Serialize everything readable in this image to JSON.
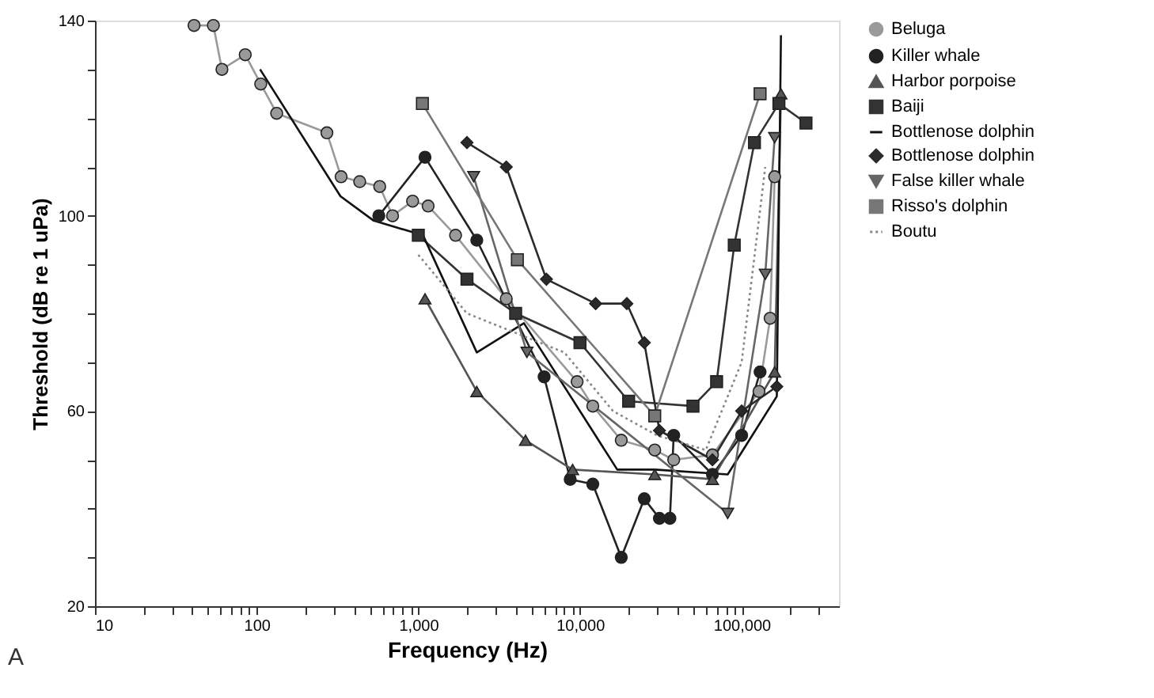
{
  "chart_data": {
    "type": "line",
    "xlabel": "Frequency (Hz)",
    "ylabel": "Threshold (dB re 1 uPa)",
    "annotations": [
      "A"
    ],
    "log": "x",
    "grid": false,
    "legend": "top right",
    "xlim": [
      10,
      400000
    ],
    "ylim": [
      20,
      140
    ],
    "xticks": [
      {
        "value": 10,
        "label": "10"
      },
      {
        "value": 20,
        "label": null
      },
      {
        "value": 30,
        "label": null
      },
      {
        "value": 40,
        "label": null
      },
      {
        "value": 50,
        "label": null
      },
      {
        "value": 60,
        "label": null
      },
      {
        "value": 70,
        "label": null
      },
      {
        "value": 80,
        "label": null
      },
      {
        "value": 90,
        "label": null
      },
      {
        "value": 100,
        "label": "100"
      },
      {
        "value": 200,
        "label": null
      },
      {
        "value": 300,
        "label": null
      },
      {
        "value": 400,
        "label": null
      },
      {
        "value": 500,
        "label": null
      },
      {
        "value": 600,
        "label": null
      },
      {
        "value": 700,
        "label": null
      },
      {
        "value": 800,
        "label": null
      },
      {
        "value": 900,
        "label": null
      },
      {
        "value": 1000,
        "label": "1,000"
      },
      {
        "value": 2000,
        "label": null
      },
      {
        "value": 3000,
        "label": null
      },
      {
        "value": 4000,
        "label": null
      },
      {
        "value": 5000,
        "label": null
      },
      {
        "value": 6000,
        "label": null
      },
      {
        "value": 7000,
        "label": null
      },
      {
        "value": 8000,
        "label": null
      },
      {
        "value": 9000,
        "label": null
      },
      {
        "value": 10000,
        "label": "10,000"
      },
      {
        "value": 20000,
        "label": null
      },
      {
        "value": 30000,
        "label": null
      },
      {
        "value": 40000,
        "label": null
      },
      {
        "value": 50000,
        "label": null
      },
      {
        "value": 60000,
        "label": null
      },
      {
        "value": 70000,
        "label": null
      },
      {
        "value": 80000,
        "label": null
      },
      {
        "value": 90000,
        "label": null
      },
      {
        "value": 100000,
        "label": "100,000"
      },
      {
        "value": 200000,
        "label": null
      },
      {
        "value": 300000,
        "label": null
      }
    ],
    "yticks": [
      20,
      {
        "value": 30,
        "label": null
      },
      {
        "value": 40,
        "label": null
      },
      {
        "value": 50,
        "label": null
      },
      60,
      {
        "value": 70,
        "label": null
      },
      {
        "value": 80,
        "label": null
      },
      {
        "value": 90,
        "label": null
      },
      100,
      {
        "value": 110,
        "label": null
      },
      {
        "value": 120,
        "label": null
      },
      {
        "value": 130,
        "label": null
      },
      140
    ],
    "series": [
      {
        "name": "Beluga",
        "color": "#9a9a9a",
        "marker": "circle",
        "line_style": "solid",
        "x": [
          41,
          54,
          61,
          85,
          106,
          133,
          272,
          333,
          434,
          577,
          693,
          922,
          1150,
          1700,
          3500,
          9600,
          12000,
          18000,
          29000,
          38000,
          66000,
          128000,
          150000,
          160000
        ],
        "values": [
          139,
          139,
          130,
          133,
          127,
          121,
          117,
          108,
          107,
          106,
          100,
          103,
          102,
          96,
          83,
          66,
          61,
          54,
          52,
          50,
          51,
          64,
          79,
          108
        ]
      },
      {
        "name": "Killer whale",
        "color": "#222222",
        "marker": "circle",
        "line_style": "solid",
        "x": [
          570,
          1100,
          2300,
          6000,
          8700,
          12000,
          18000,
          25000,
          31000,
          36000,
          38000,
          66000,
          100000,
          130000
        ],
        "values": [
          100,
          112,
          95,
          67,
          46,
          45,
          30,
          42,
          38,
          38,
          55,
          47,
          55,
          68
        ]
      },
      {
        "name": "Harbor porpoise",
        "color": "#555555",
        "marker": "triangle",
        "line_style": "solid",
        "x": [
          1100,
          2300,
          4600,
          9000,
          29000,
          66000,
          160000,
          175000
        ],
        "values": [
          83,
          64,
          54,
          48,
          47,
          46,
          68,
          125
        ]
      },
      {
        "name": "Baiji",
        "color": "#333333",
        "marker": "square",
        "line_style": "solid",
        "x": [
          1000,
          2000,
          4000,
          10000,
          20000,
          50000,
          70000,
          90000,
          120000,
          170000,
          250000
        ],
        "values": [
          96,
          87,
          80,
          74,
          62,
          61,
          66,
          94,
          115,
          123,
          119
        ]
      },
      {
        "name": "Bottlenose dolphin",
        "color": "#111111",
        "marker": "none",
        "line_style": "solid",
        "x": [
          105,
          330,
          530,
          1070,
          2300,
          4500,
          17000,
          29000,
          82000,
          165000,
          175000
        ],
        "values": [
          130,
          104,
          99,
          96,
          72,
          78,
          48,
          48,
          47,
          63,
          137
        ]
      },
      {
        "name": "Bottlenose dolphin",
        "color": "#2a2a2a",
        "marker": "diamond",
        "line_style": "solid",
        "x": [
          2000,
          3500,
          6200,
          12500,
          19500,
          25000,
          31000,
          66000,
          100000,
          165000
        ],
        "values": [
          115,
          110,
          87,
          82,
          82,
          74,
          56,
          50,
          60,
          65
        ]
      },
      {
        "name": "False killer whale",
        "color": "#666666",
        "marker": "triangle-down",
        "line_style": "solid",
        "x": [
          2200,
          4700,
          82000,
          140000,
          160000
        ],
        "values": [
          108,
          72,
          39,
          88,
          116
        ]
      },
      {
        "name": "Risso's dolphin",
        "color": "#777777",
        "marker": "square",
        "line_style": "solid",
        "x": [
          1060,
          4100,
          29000,
          130000
        ],
        "values": [
          123,
          91,
          59,
          125
        ]
      },
      {
        "name": "Boutu",
        "color": "#888888",
        "marker": "none",
        "line_style": "dotted",
        "x": [
          1000,
          2000,
          4000,
          8000,
          16000,
          30000,
          60000,
          100000,
          140000
        ],
        "values": [
          92,
          80,
          76,
          72,
          60,
          55,
          52,
          70,
          110
        ]
      }
    ]
  }
}
